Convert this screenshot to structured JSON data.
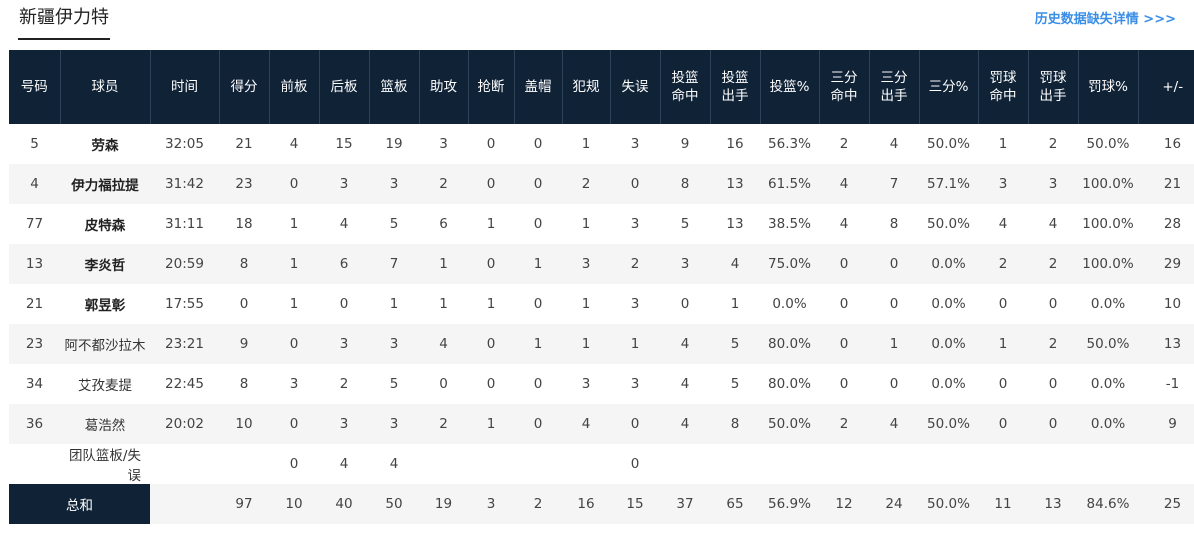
{
  "team": {
    "title": "新疆伊力特"
  },
  "history_link": "历史数据缺失详情 >>>",
  "columns": [
    {
      "l1": "号码",
      "l2": ""
    },
    {
      "l1": "球员",
      "l2": ""
    },
    {
      "l1": "时间",
      "l2": ""
    },
    {
      "l1": "得分",
      "l2": ""
    },
    {
      "l1": "前板",
      "l2": ""
    },
    {
      "l1": "后板",
      "l2": ""
    },
    {
      "l1": "篮板",
      "l2": ""
    },
    {
      "l1": "助攻",
      "l2": ""
    },
    {
      "l1": "抢断",
      "l2": ""
    },
    {
      "l1": "盖帽",
      "l2": ""
    },
    {
      "l1": "犯规",
      "l2": ""
    },
    {
      "l1": "失误",
      "l2": ""
    },
    {
      "l1": "投篮",
      "l2": "命中"
    },
    {
      "l1": "投篮",
      "l2": "出手"
    },
    {
      "l1": "投篮%",
      "l2": ""
    },
    {
      "l1": "三分",
      "l2": "命中"
    },
    {
      "l1": "三分",
      "l2": "出手"
    },
    {
      "l1": "三分%",
      "l2": ""
    },
    {
      "l1": "罚球",
      "l2": "命中"
    },
    {
      "l1": "罚球",
      "l2": "出手"
    },
    {
      "l1": "罚球%",
      "l2": ""
    },
    {
      "l1": "+/-",
      "l2": ""
    }
  ],
  "players": [
    {
      "starter": true,
      "cells": [
        "5",
        "劳森",
        "32:05",
        "21",
        "4",
        "15",
        "19",
        "3",
        "0",
        "0",
        "1",
        "3",
        "9",
        "16",
        "56.3%",
        "2",
        "4",
        "50.0%",
        "1",
        "2",
        "50.0%",
        "16"
      ]
    },
    {
      "starter": true,
      "cells": [
        "4",
        "伊力福拉提",
        "31:42",
        "23",
        "0",
        "3",
        "3",
        "2",
        "0",
        "0",
        "2",
        "0",
        "8",
        "13",
        "61.5%",
        "4",
        "7",
        "57.1%",
        "3",
        "3",
        "100.0%",
        "21"
      ]
    },
    {
      "starter": true,
      "cells": [
        "77",
        "皮特森",
        "31:11",
        "18",
        "1",
        "4",
        "5",
        "6",
        "1",
        "0",
        "1",
        "3",
        "5",
        "13",
        "38.5%",
        "4",
        "8",
        "50.0%",
        "4",
        "4",
        "100.0%",
        "28"
      ]
    },
    {
      "starter": true,
      "cells": [
        "13",
        "李炎哲",
        "20:59",
        "8",
        "1",
        "6",
        "7",
        "1",
        "0",
        "1",
        "3",
        "2",
        "3",
        "4",
        "75.0%",
        "0",
        "0",
        "0.0%",
        "2",
        "2",
        "100.0%",
        "29"
      ]
    },
    {
      "starter": true,
      "cells": [
        "21",
        "郭昱彰",
        "17:55",
        "0",
        "1",
        "0",
        "1",
        "1",
        "1",
        "0",
        "1",
        "3",
        "0",
        "1",
        "0.0%",
        "0",
        "0",
        "0.0%",
        "0",
        "0",
        "0.0%",
        "10"
      ]
    },
    {
      "starter": false,
      "cells": [
        "23",
        "阿不都沙拉木",
        "23:21",
        "9",
        "0",
        "3",
        "3",
        "4",
        "0",
        "1",
        "1",
        "1",
        "4",
        "5",
        "80.0%",
        "0",
        "1",
        "0.0%",
        "1",
        "2",
        "50.0%",
        "13"
      ]
    },
    {
      "starter": false,
      "cells": [
        "34",
        "艾孜麦提",
        "22:45",
        "8",
        "3",
        "2",
        "5",
        "0",
        "0",
        "0",
        "3",
        "3",
        "4",
        "5",
        "80.0%",
        "0",
        "0",
        "0.0%",
        "0",
        "0",
        "0.0%",
        "-1"
      ]
    },
    {
      "starter": false,
      "cells": [
        "36",
        "葛浩然",
        "20:02",
        "10",
        "0",
        "3",
        "3",
        "2",
        "1",
        "0",
        "4",
        "0",
        "4",
        "8",
        "50.0%",
        "2",
        "4",
        "50.0%",
        "0",
        "0",
        "0.0%",
        "9"
      ]
    }
  ],
  "team_row": {
    "label": "团队篮板/失误",
    "oreb": "0",
    "dreb": "4",
    "reb": "4",
    "tov": "0"
  },
  "totals": {
    "label": "总和",
    "cells": [
      "97",
      "10",
      "40",
      "50",
      "19",
      "3",
      "2",
      "16",
      "15",
      "37",
      "65",
      "56.9%",
      "12",
      "24",
      "50.0%",
      "11",
      "13",
      "84.6%",
      "25"
    ]
  }
}
